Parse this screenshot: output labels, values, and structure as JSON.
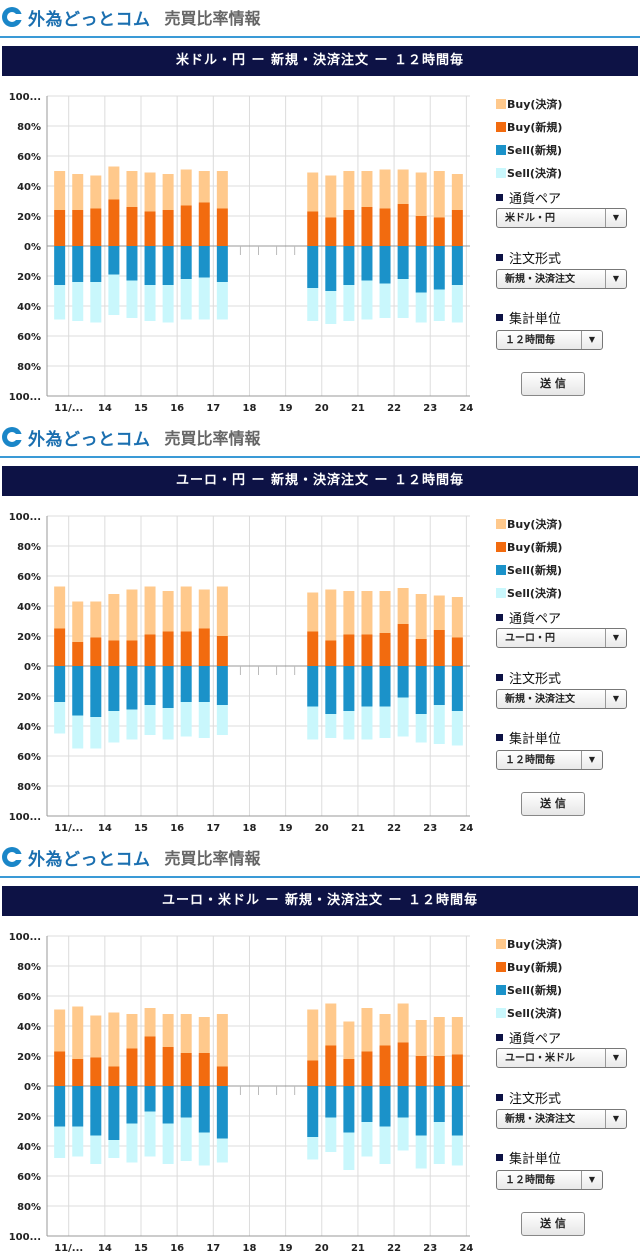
{
  "brand": {
    "logo_text": "外為どっとコム",
    "page_title": "売買比率情報"
  },
  "legend": {
    "items": [
      {
        "label": "Buy(決済)",
        "color": "#ffc98c"
      },
      {
        "label": "Buy(新規)",
        "color": "#f26b0f"
      },
      {
        "label": "Sell(新規)",
        "color": "#1b92c9"
      },
      {
        "label": "Sell(決済)",
        "color": "#c9f7fc"
      }
    ]
  },
  "controls": {
    "pair_label": "通貨ペア",
    "order_type_label": "注文形式",
    "unit_label": "集計単位",
    "send_label": "送 信",
    "arrow_icon": "▼"
  },
  "panels": [
    {
      "title": "米ドル・円 ー 新規・決済注文 ー １２時間毎",
      "pair_value": "米ドル・円",
      "order_type_value": "新規・決済注文",
      "unit_value": "１２時間毎"
    },
    {
      "title": "ユーロ・円 ー 新規・決済注文 ー １２時間毎",
      "pair_value": "ユーロ・円",
      "order_type_value": "新規・決済注文",
      "unit_value": "１２時間毎"
    },
    {
      "title": "ユーロ・米ドル ー 新規・決済注文 ー １２時間毎",
      "pair_value": "ユーロ・米ドル",
      "order_type_value": "新規・決済注文",
      "unit_value": "１２時間毎"
    }
  ],
  "chart_data": [
    {
      "type": "bar",
      "y_tick_labels": [
        "100...",
        "80%",
        "60%",
        "40%",
        "20%",
        "0%",
        "20%",
        "40%",
        "60%",
        "80%",
        "100..."
      ],
      "x_tick_labels": [
        "11/...",
        "14",
        "15",
        "16",
        "17",
        "18",
        "19",
        "20",
        "21",
        "22",
        "23",
        "24"
      ],
      "ylim": [
        -100,
        100
      ],
      "grid": true,
      "buy_new": [
        24,
        24,
        25,
        31,
        26,
        23,
        24,
        27,
        29,
        25,
        null,
        null,
        null,
        null,
        23,
        19,
        24,
        26,
        25,
        28,
        20,
        19,
        24
      ],
      "buy_total": [
        50,
        48,
        47,
        53,
        50,
        49,
        48,
        51,
        50,
        50,
        null,
        null,
        null,
        null,
        49,
        47,
        50,
        50,
        51,
        51,
        49,
        50,
        48
      ],
      "sell_new": [
        26,
        24,
        24,
        19,
        23,
        26,
        26,
        22,
        21,
        24,
        null,
        null,
        null,
        null,
        28,
        30,
        26,
        23,
        25,
        22,
        31,
        29,
        26
      ],
      "sell_total": [
        49,
        50,
        51,
        46,
        48,
        50,
        51,
        49,
        49,
        49,
        null,
        null,
        null,
        null,
        50,
        52,
        50,
        49,
        48,
        48,
        51,
        50,
        51
      ]
    },
    {
      "type": "bar",
      "y_tick_labels": [
        "100...",
        "80%",
        "60%",
        "40%",
        "20%",
        "0%",
        "20%",
        "40%",
        "60%",
        "80%",
        "100..."
      ],
      "x_tick_labels": [
        "11/...",
        "14",
        "15",
        "16",
        "17",
        "18",
        "19",
        "20",
        "21",
        "22",
        "23",
        "24"
      ],
      "ylim": [
        -100,
        100
      ],
      "grid": true,
      "buy_new": [
        25,
        16,
        19,
        17,
        17,
        21,
        23,
        23,
        25,
        20,
        null,
        null,
        null,
        null,
        23,
        17,
        21,
        21,
        22,
        28,
        18,
        24,
        19
      ],
      "buy_total": [
        53,
        43,
        43,
        48,
        51,
        53,
        50,
        53,
        51,
        53,
        null,
        null,
        null,
        null,
        49,
        51,
        50,
        50,
        50,
        52,
        48,
        47,
        46
      ],
      "sell_new": [
        24,
        33,
        34,
        30,
        29,
        26,
        28,
        24,
        24,
        26,
        null,
        null,
        null,
        null,
        27,
        32,
        30,
        27,
        27,
        21,
        32,
        26,
        30
      ],
      "sell_total": [
        45,
        55,
        55,
        51,
        49,
        46,
        49,
        47,
        48,
        46,
        null,
        null,
        null,
        null,
        49,
        48,
        49,
        49,
        48,
        47,
        51,
        52,
        53
      ]
    },
    {
      "type": "bar",
      "y_tick_labels": [
        "100...",
        "80%",
        "60%",
        "40%",
        "20%",
        "0%",
        "20%",
        "40%",
        "60%",
        "80%",
        "100..."
      ],
      "x_tick_labels": [
        "11/...",
        "14",
        "15",
        "16",
        "17",
        "18",
        "19",
        "20",
        "21",
        "22",
        "23",
        "24"
      ],
      "ylim": [
        -100,
        100
      ],
      "grid": true,
      "buy_new": [
        23,
        18,
        19,
        13,
        25,
        33,
        26,
        22,
        22,
        13,
        null,
        null,
        null,
        null,
        17,
        27,
        18,
        23,
        27,
        29,
        20,
        20,
        21
      ],
      "buy_total": [
        51,
        53,
        47,
        49,
        48,
        52,
        48,
        48,
        46,
        48,
        null,
        null,
        null,
        null,
        51,
        55,
        43,
        52,
        48,
        55,
        44,
        46,
        46
      ],
      "sell_new": [
        27,
        27,
        33,
        36,
        25,
        17,
        25,
        21,
        31,
        35,
        null,
        null,
        null,
        null,
        34,
        21,
        31,
        24,
        27,
        21,
        33,
        24,
        33
      ],
      "sell_total": [
        48,
        47,
        52,
        48,
        51,
        47,
        52,
        50,
        53,
        51,
        null,
        null,
        null,
        null,
        49,
        44,
        56,
        47,
        52,
        43,
        55,
        52,
        53
      ]
    }
  ]
}
